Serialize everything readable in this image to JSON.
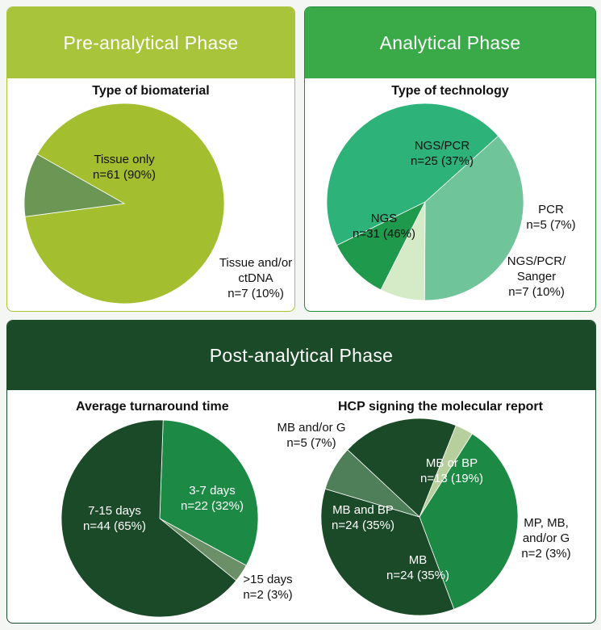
{
  "colors": {
    "pre_header": "#a8c43a",
    "pre_border": "#a8c43a",
    "analytical_header": "#3aaa49",
    "analytical_border": "#1f8a3b",
    "post_header": "#1a4a28",
    "post_border": "#1a4a28"
  },
  "panels": {
    "pre_analytical": {
      "title": "Pre-analytical Phase"
    },
    "analytical": {
      "title": "Analytical Phase"
    },
    "post_analytical": {
      "title": "Post-analytical Phase"
    }
  },
  "chart_data": [
    {
      "id": "biomaterial",
      "type": "pie",
      "title": "Type of biomaterial",
      "slices": [
        {
          "label": "Tissue only",
          "n": 61,
          "pct": 90,
          "value_text": "n=61 (90%)",
          "color": "#a3bf2f"
        },
        {
          "label": "Tissue and/or\nctDNA",
          "n": 7,
          "pct": 10,
          "value_text": "n=7 (10%)",
          "color": "#6b9654"
        }
      ]
    },
    {
      "id": "technology",
      "type": "pie",
      "title": "Type of technology",
      "slices": [
        {
          "label": "NGS/PCR",
          "n": 25,
          "pct": 37,
          "value_text": "n=25 (37%)",
          "color": "#6fc49a"
        },
        {
          "label": "PCR",
          "n": 5,
          "pct": 7,
          "value_text": "n=5 (7%)",
          "color": "#d5ebc8"
        },
        {
          "label": "NGS/PCR/\nSanger",
          "n": 7,
          "pct": 10,
          "value_text": "n=7 (10%)",
          "color": "#1f9a4c"
        },
        {
          "label": "NGS",
          "n": 31,
          "pct": 46,
          "value_text": "n=31 (46%)",
          "color": "#2db27a"
        }
      ]
    },
    {
      "id": "turnaround",
      "type": "pie",
      "title": "Average turnaround time",
      "slices": [
        {
          "label": "3-7 days",
          "n": 22,
          "pct": 32,
          "value_text": "n=22 (32%)",
          "color": "#1c8a45"
        },
        {
          "label": ">15 days",
          "n": 2,
          "pct": 3,
          "value_text": "n=2 (3%)",
          "color": "#6b8f66"
        },
        {
          "label": "7-15 days",
          "n": 44,
          "pct": 65,
          "value_text": "n=44 (65%)",
          "color": "#1a4a28"
        }
      ]
    },
    {
      "id": "hcp",
      "type": "pie",
      "title": "HCP signing the molecular report",
      "slices": [
        {
          "label": "MB or BP",
          "n": 13,
          "pct": 19,
          "value_text": "n=13 (19%)",
          "color": "#1a4a28"
        },
        {
          "label": "MP, MB,\nand/or G",
          "n": 2,
          "pct": 3,
          "value_text": "n=2 (3%)",
          "color": "#b7cf9c"
        },
        {
          "label": "MB",
          "n": 24,
          "pct": 35,
          "value_text": "n=24 (35%)",
          "color": "#1c8a45"
        },
        {
          "label": "MB and BP",
          "n": 24,
          "pct": 35,
          "value_text": "n=24 (35%)",
          "color": "#1a4a28"
        },
        {
          "label": "MB and/or G",
          "n": 5,
          "pct": 7,
          "value_text": "n=5 (7%)",
          "color": "#4f7f58"
        }
      ]
    }
  ]
}
